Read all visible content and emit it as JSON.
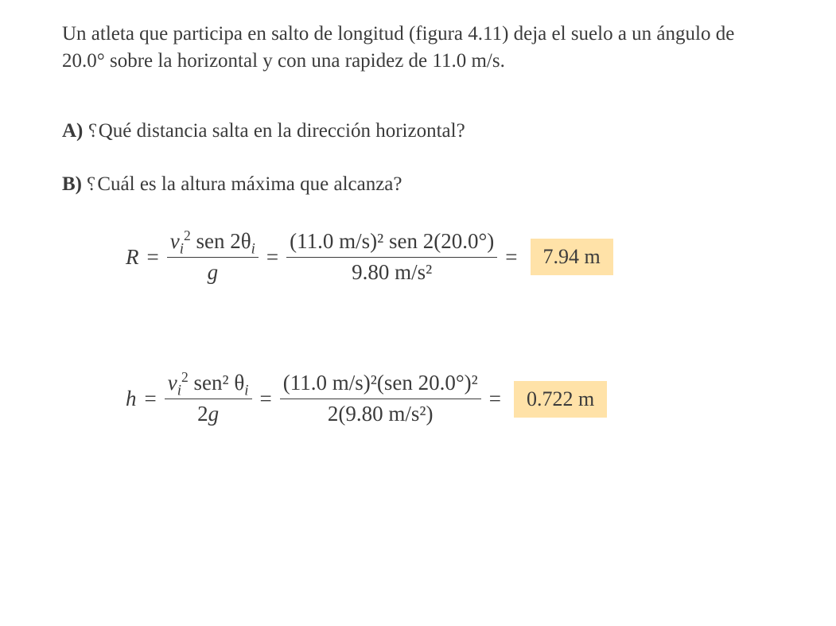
{
  "text_color": "#3b3b3b",
  "highlight_color": "#ffe2a8",
  "intro": "Un atleta que participa en salto de longitud (figura 4.11) deja el suelo a un ángulo de 20.0° sobre la horizontal y con una rapidez de 11.0 m/s.",
  "questionA": {
    "label": "A)",
    "text": "Qué distancia salta en la dirección horizontal?"
  },
  "questionB": {
    "label": "B)",
    "text": "Cuál es la altura máxima que alcanza?"
  },
  "equationR": {
    "lhs": "R",
    "sym_num_prefix": "v",
    "sym_num_text": " sen 2θ",
    "sym_den": "g",
    "val_num": "(11.0 m/s)² sen 2(20.0°)",
    "val_den": "9.80 m/s²",
    "result": "7.94 m"
  },
  "equationH": {
    "lhs": "h",
    "sym_num_prefix": "v",
    "sym_num_text": " sen² θ",
    "sym_den": "2g",
    "val_num": "(11.0 m/s)²(sen 20.0°)²",
    "val_den": "2(9.80 m/s²)",
    "result": "0.722 m"
  }
}
